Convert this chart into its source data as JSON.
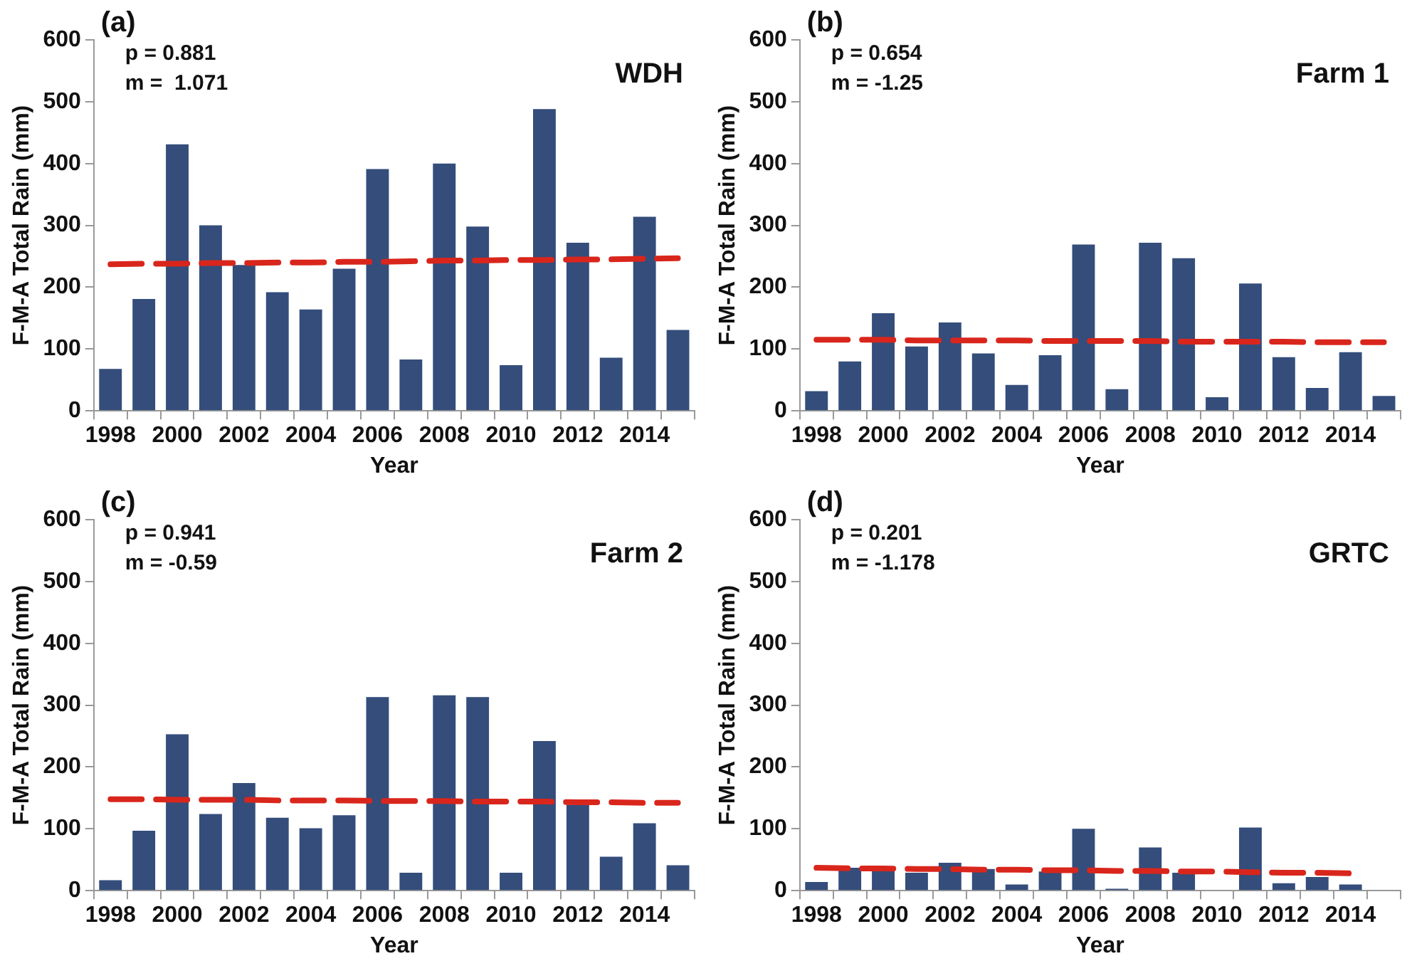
{
  "chart_data": [
    {
      "type": "bar",
      "title": "WDH",
      "xlabel": "Year",
      "ylabel": "F-M-A Total Rain (mm)",
      "annotations": [
        "(a)",
        "p = 0.881",
        "m =  1.071"
      ],
      "categories": [
        "1998",
        null,
        "2000",
        null,
        "2002",
        null,
        "2004",
        null,
        "2006",
        null,
        "2008",
        null,
        "2010",
        null,
        "2012",
        null,
        "2014",
        null
      ],
      "series": [
        {
          "color": "#344d7b",
          "values": [
            68,
            181,
            431,
            300,
            236,
            192,
            164,
            230,
            391,
            83,
            400,
            298,
            74,
            488,
            272,
            86,
            314,
            131
          ]
        },
        {
          "type": "line",
          "color": "#d9261c",
          "line_style": "dashed",
          "marker": "none",
          "values": [
            237,
            238,
            238,
            239,
            239,
            240,
            240,
            241,
            241,
            242,
            243,
            243,
            244,
            244,
            245,
            245,
            246,
            247
          ]
        }
      ],
      "ylim": [
        0,
        600
      ],
      "yticks": [
        0,
        100,
        200,
        300,
        400,
        500,
        600
      ],
      "grid": false
    },
    {
      "type": "bar",
      "title": "Farm 1",
      "xlabel": "Year",
      "ylabel": "F-M-A Total Rain (mm)",
      "annotations": [
        "(b)",
        "p = 0.654",
        "m = -1.25"
      ],
      "categories": [
        "1998",
        null,
        "2000",
        null,
        "2002",
        null,
        "2004",
        null,
        "2006",
        null,
        "2008",
        null,
        "2010",
        null,
        "2012",
        null,
        "2014",
        null
      ],
      "series": [
        {
          "color": "#344d7b",
          "values": [
            32,
            80,
            158,
            104,
            143,
            93,
            42,
            90,
            269,
            35,
            272,
            247,
            22,
            206,
            87,
            37,
            95,
            24
          ]
        },
        {
          "type": "line",
          "color": "#d9261c",
          "line_style": "dashed",
          "marker": "none",
          "values": [
            115,
            115,
            115,
            114,
            114,
            114,
            114,
            113,
            113,
            113,
            113,
            112,
            112,
            112,
            112,
            111,
            111,
            111
          ]
        }
      ],
      "ylim": [
        0,
        600
      ],
      "yticks": [
        0,
        100,
        200,
        300,
        400,
        500,
        600
      ],
      "grid": false
    },
    {
      "type": "bar",
      "title": "Farm 2",
      "xlabel": "Year",
      "ylabel": "F-M-A Total Rain (mm)",
      "annotations": [
        "(c)",
        "p = 0.941",
        "m = -0.59"
      ],
      "categories": [
        "1998",
        null,
        "2000",
        null,
        "2002",
        null,
        "2004",
        null,
        "2006",
        null,
        "2008",
        null,
        "2010",
        null,
        "2012",
        null,
        "2014",
        null
      ],
      "series": [
        {
          "color": "#344d7b",
          "values": [
            17,
            97,
            253,
            124,
            174,
            118,
            101,
            122,
            313,
            29,
            316,
            313,
            29,
            242,
            139,
            55,
            109,
            41
          ]
        },
        {
          "type": "line",
          "color": "#d9261c",
          "line_style": "dashed",
          "marker": "none",
          "values": [
            148,
            148,
            147,
            147,
            147,
            146,
            146,
            146,
            145,
            145,
            145,
            144,
            144,
            144,
            143,
            143,
            142,
            142
          ]
        }
      ],
      "ylim": [
        0,
        600
      ],
      "yticks": [
        0,
        100,
        200,
        300,
        400,
        500,
        600
      ],
      "grid": false
    },
    {
      "type": "bar",
      "title": "GRTC",
      "xlabel": "Year",
      "ylabel": "F-M-A Total Rain (mm)",
      "annotations": [
        "(d)",
        "p = 0.201",
        "m = -1.178"
      ],
      "categories": [
        "1998",
        null,
        "2000",
        null,
        "2002",
        null,
        "2004",
        null,
        "2006",
        null,
        "2008",
        null,
        "2010",
        null,
        "2012",
        null,
        "2014",
        null
      ],
      "series": [
        {
          "color": "#344d7b",
          "values": [
            14,
            37,
            35,
            29,
            45,
            35,
            10,
            31,
            100,
            3,
            70,
            29,
            null,
            102,
            12,
            22,
            10,
            null
          ]
        },
        {
          "type": "line",
          "color": "#d9261c",
          "line_style": "dashed",
          "marker": "none",
          "values": [
            37,
            36,
            36,
            35,
            35,
            34,
            34,
            33,
            33,
            32,
            32,
            31,
            31,
            30,
            29,
            29,
            28,
            null
          ]
        }
      ],
      "ylim": [
        0,
        600
      ],
      "yticks": [
        0,
        100,
        200,
        300,
        400,
        500,
        600
      ],
      "grid": false
    }
  ]
}
